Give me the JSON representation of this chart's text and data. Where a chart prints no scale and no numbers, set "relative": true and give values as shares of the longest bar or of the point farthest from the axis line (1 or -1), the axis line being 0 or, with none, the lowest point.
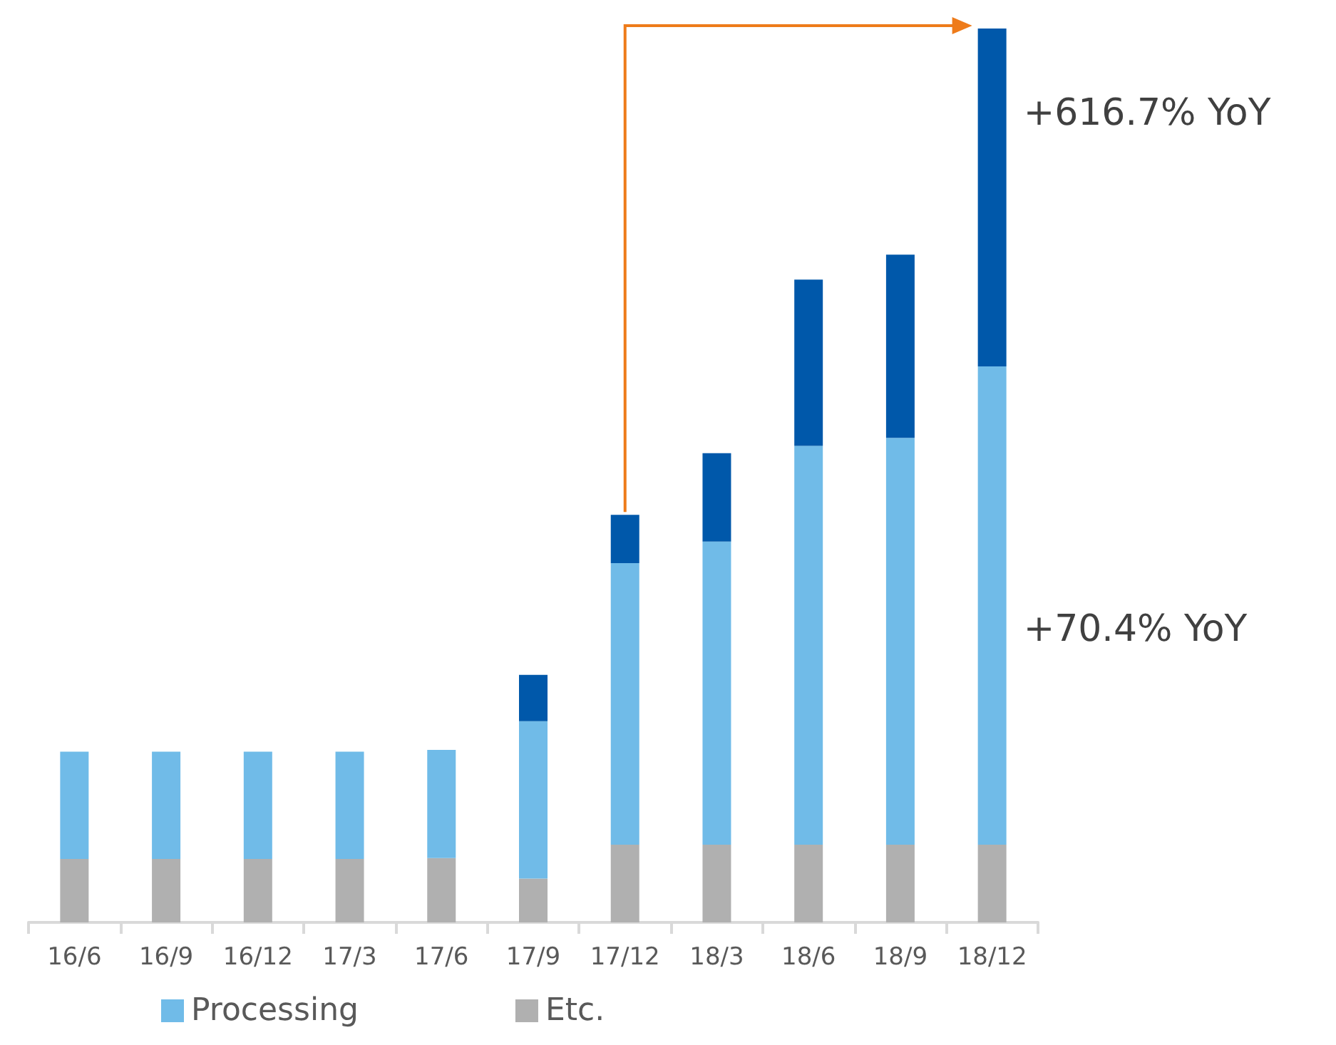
{
  "chart_data": {
    "type": "bar",
    "stacked": true,
    "relative": true,
    "categories": [
      "16/6",
      "16/9",
      "16/12",
      "17/3",
      "17/6",
      "17/9",
      "17/12",
      "18/3",
      "18/6",
      "18/9",
      "18/12"
    ],
    "series": [
      {
        "name": "Etc.",
        "color": "#b0b0b0",
        "values": [
          0.071,
          0.071,
          0.071,
          0.071,
          0.072,
          0.049,
          0.087,
          0.087,
          0.087,
          0.087,
          0.087
        ]
      },
      {
        "name": "Processing",
        "color": "#70bbe8",
        "values": [
          0.12,
          0.12,
          0.12,
          0.12,
          0.121,
          0.176,
          0.315,
          0.339,
          0.446,
          0.455,
          0.535
        ]
      },
      {
        "color": "#0058aa",
        "values": [
          0,
          0,
          0,
          0,
          0,
          0.052,
          0.054,
          0.099,
          0.186,
          0.205,
          0.378
        ]
      }
    ],
    "annotations": [
      "+616.7% YoY",
      "+70.4% YoY"
    ],
    "legend": "bottom"
  }
}
